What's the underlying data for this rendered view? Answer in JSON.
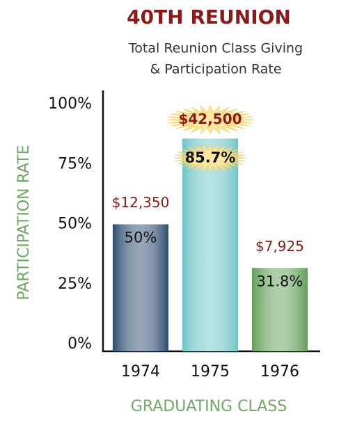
{
  "chart_data": {
    "type": "bar",
    "title": "40TH REUNION",
    "subtitle": [
      "Total Reunion Class Giving",
      "& Participation Rate"
    ],
    "y_label": "PARTICIPATION RATE",
    "x_label": "GRADUATING CLASS",
    "categories": [
      "1974",
      "1975",
      "1976"
    ],
    "values": [
      50,
      85.7,
      31.8
    ],
    "value_labels": [
      "50%",
      "85.7%",
      "31.8%"
    ],
    "colors": [
      "#2b4a6f",
      "#6cc4c6",
      "#5e9e55"
    ],
    "giving": {
      "values": [
        12350,
        42500,
        7925
      ],
      "value_labels": [
        "$12,350",
        "$42,500",
        "$7,925"
      ]
    },
    "ylim": [
      0,
      100
    ],
    "yticks": [
      {
        "value": 0,
        "label": "0%"
      },
      {
        "value": 25,
        "label": "25%"
      },
      {
        "value": 50,
        "label": "50%"
      },
      {
        "value": 75,
        "label": "75%"
      },
      {
        "value": 100,
        "label": "100%"
      }
    ]
  }
}
